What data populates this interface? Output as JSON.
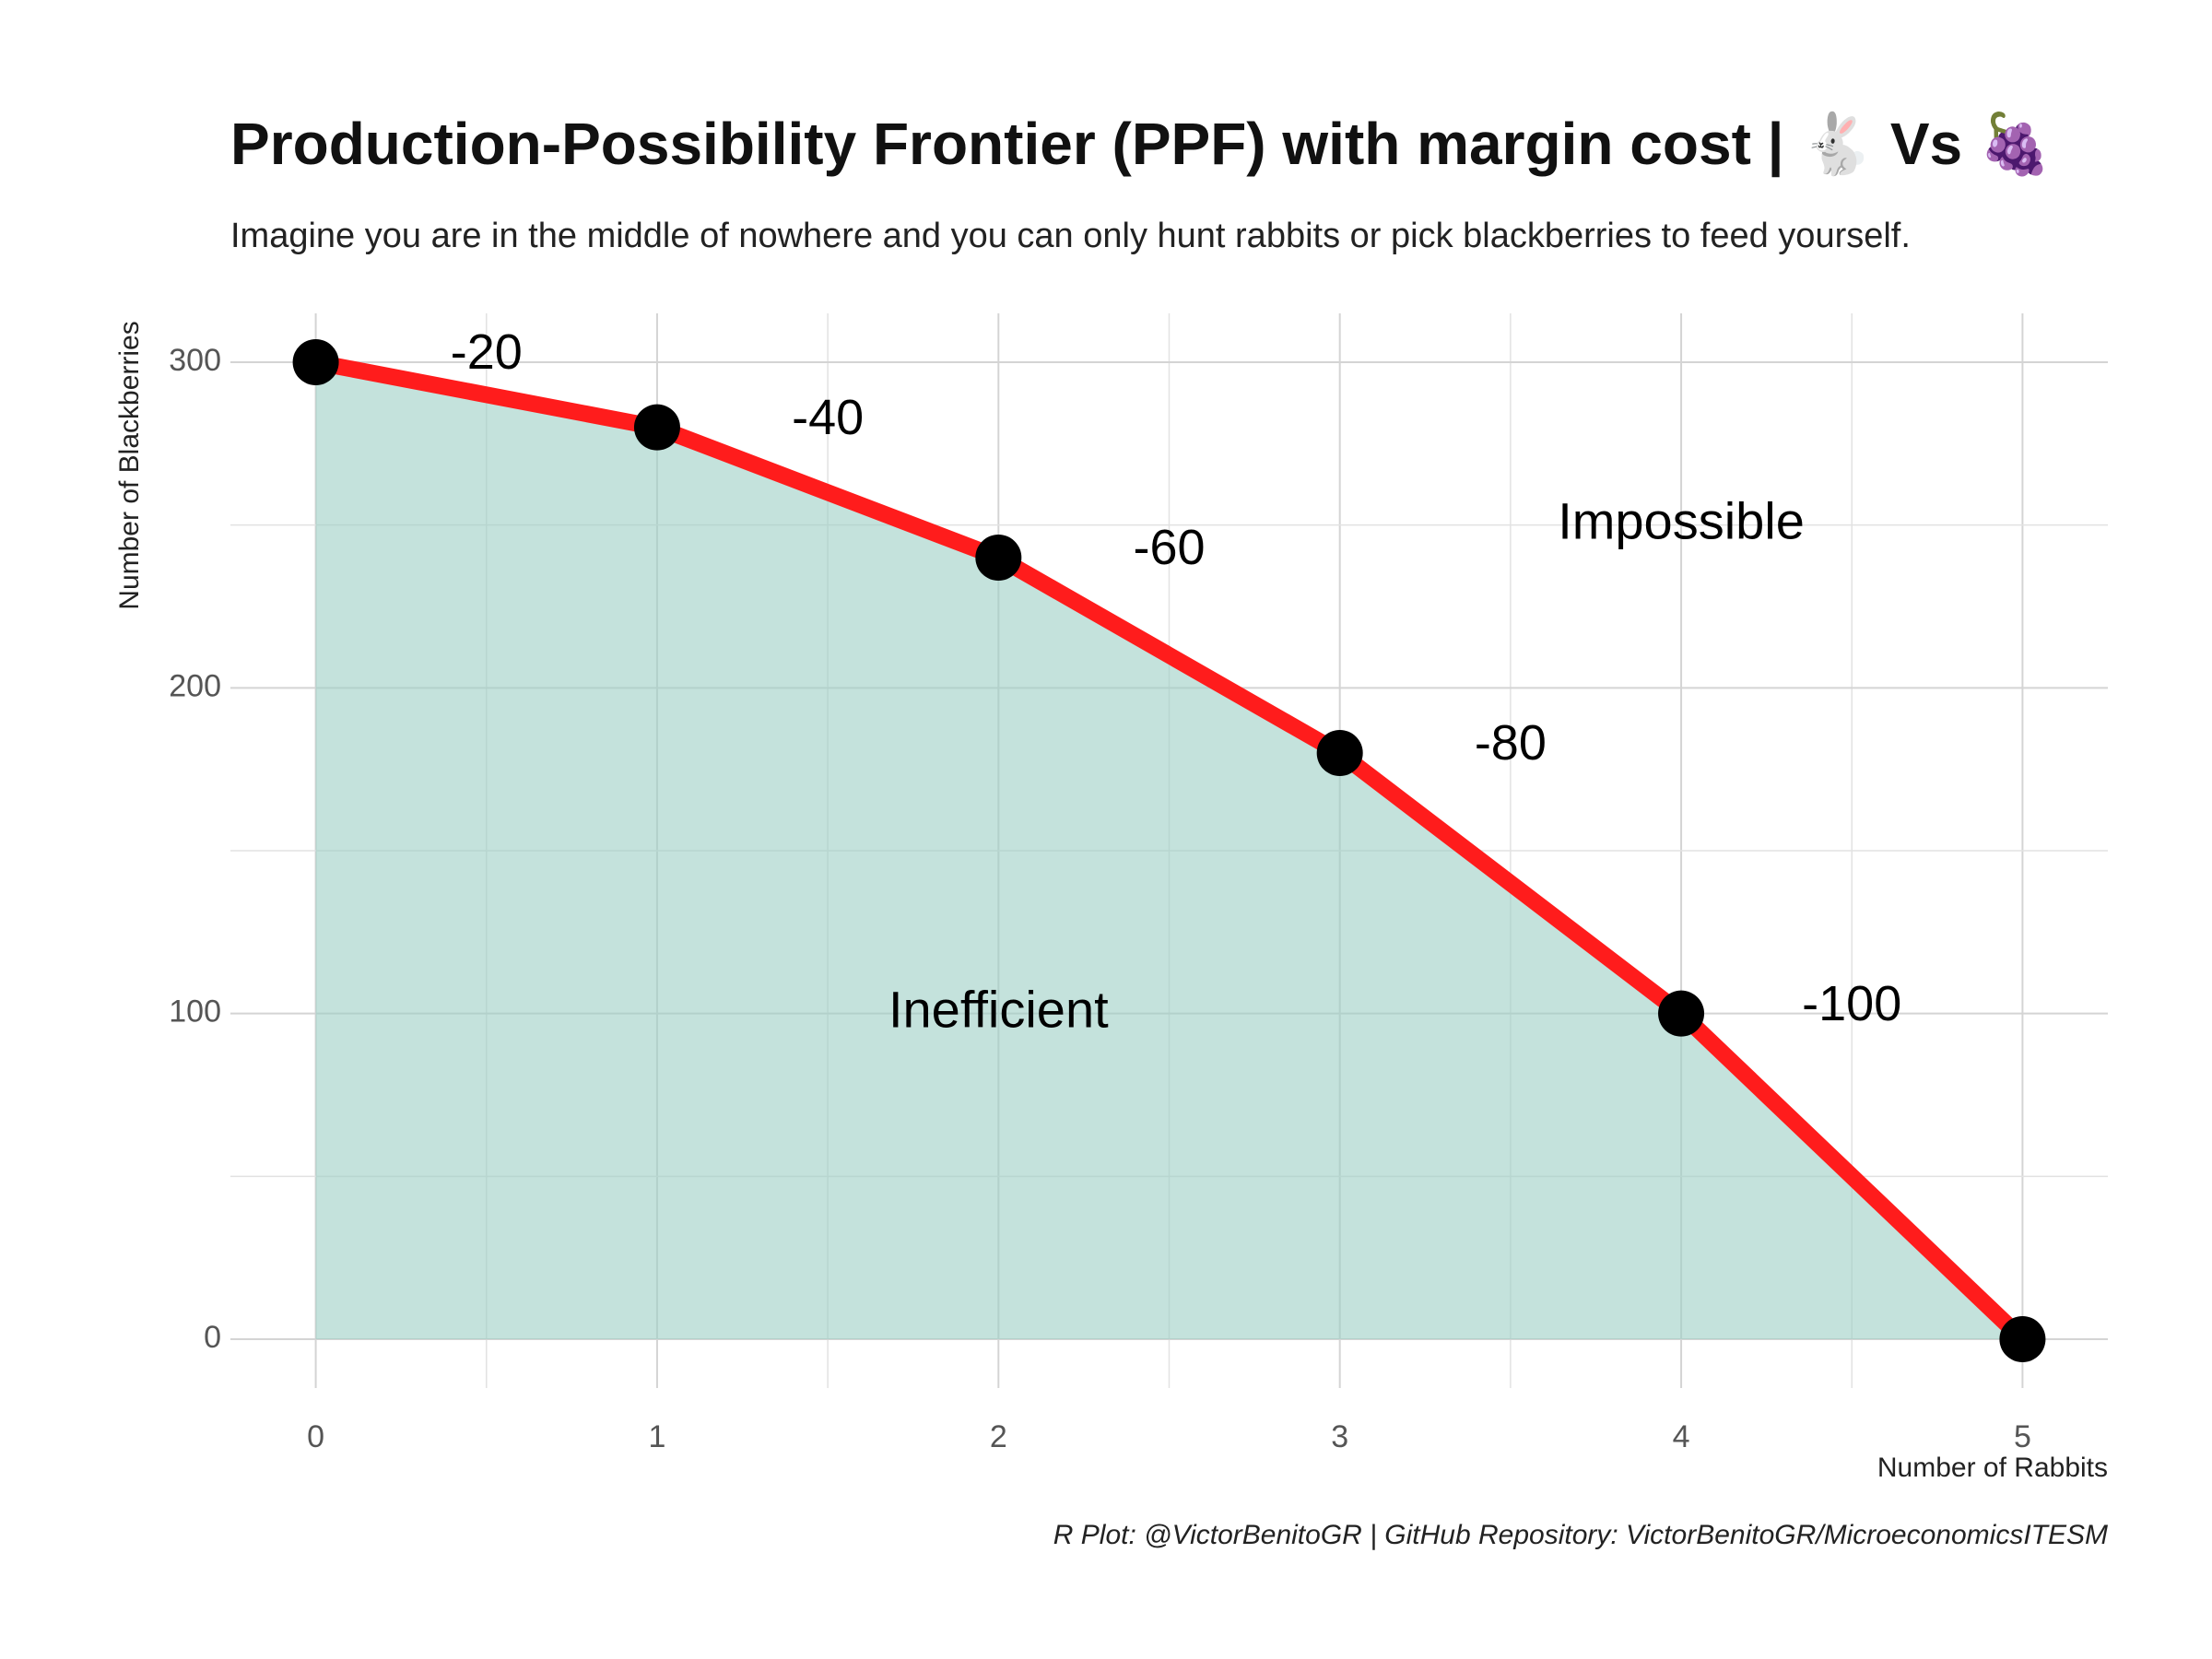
{
  "chart_data": {
    "type": "area",
    "title": "Production-Possibility Frontier (PPF) with margin cost | 🐇 Vs 🍇",
    "subtitle": "Imagine you are in the middle of nowhere and you can only hunt rabbits or pick blackberries to feed yourself.",
    "xlabel": "Number of Rabbits",
    "ylabel": "Number of Blackberries",
    "caption": "R Plot: @VictorBenitoGR | GitHub Repository: VictorBenitoGR/MicroeconomicsITESM",
    "x": [
      0,
      1,
      2,
      3,
      4,
      5
    ],
    "y": [
      300,
      280,
      240,
      180,
      100,
      0
    ],
    "xlim": [
      -0.25,
      5.25
    ],
    "ylim": [
      -15,
      315
    ],
    "x_ticks": [
      0,
      1,
      2,
      3,
      4,
      5
    ],
    "y_ticks": [
      0,
      100,
      200,
      300
    ],
    "grid": true,
    "marginal_cost_labels": [
      {
        "x": 0.5,
        "y": 302,
        "text": "-20"
      },
      {
        "x": 1.5,
        "y": 282,
        "text": "-40"
      },
      {
        "x": 2.5,
        "y": 242,
        "text": "-60"
      },
      {
        "x": 3.5,
        "y": 182,
        "text": "-80"
      },
      {
        "x": 4.5,
        "y": 102,
        "text": "-100"
      }
    ],
    "region_labels": [
      {
        "x": 2,
        "y": 100,
        "text": "Inefficient"
      },
      {
        "x": 4,
        "y": 250,
        "text": "Impossible"
      }
    ],
    "colors": {
      "fill": "#9ccfc4",
      "line": "#ff1c1c",
      "point": "#000000"
    }
  }
}
